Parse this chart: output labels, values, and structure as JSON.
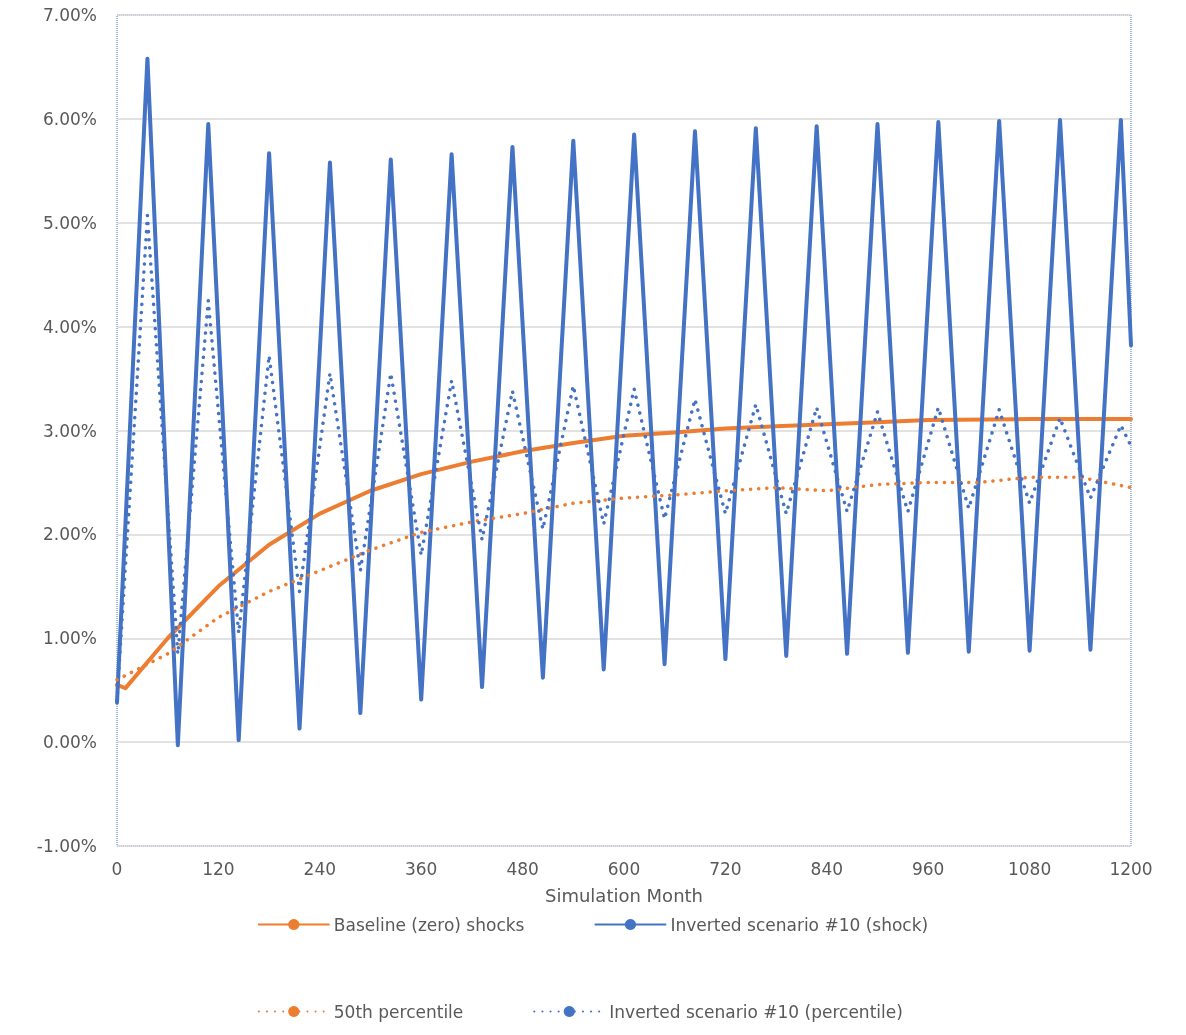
{
  "chart_data": {
    "type": "line",
    "xlabel": "Simulation Month",
    "xlim": [
      0,
      1200
    ],
    "xticks": [
      0,
      120,
      240,
      360,
      480,
      600,
      720,
      840,
      960,
      1080,
      1200
    ],
    "ylim": [
      -1,
      7
    ],
    "yticks": [
      {
        "value": -1,
        "label": "-1.00%"
      },
      {
        "value": 0,
        "label": "0.00%"
      },
      {
        "value": 1,
        "label": "1.00%"
      },
      {
        "value": 2,
        "label": "2.00%"
      },
      {
        "value": 3,
        "label": "3.00%"
      },
      {
        "value": 4,
        "label": "4.00%"
      },
      {
        "value": 5,
        "label": "5.00%"
      },
      {
        "value": 6,
        "label": "6.00%"
      },
      {
        "value": 7,
        "label": "7.00%"
      }
    ],
    "grid": "y",
    "legend": "bottom",
    "marker": "none",
    "series": [
      {
        "name": "Baseline (zero) shocks",
        "color": "#ed7d31",
        "line_style": "solid",
        "x": [
          0,
          10,
          60,
          120,
          180,
          240,
          300,
          360,
          420,
          480,
          540,
          600,
          660,
          720,
          780,
          840,
          900,
          960,
          1080,
          1200
        ],
        "values": [
          0.55,
          0.52,
          1.0,
          1.5,
          1.9,
          2.2,
          2.42,
          2.58,
          2.7,
          2.8,
          2.88,
          2.95,
          2.98,
          3.02,
          3.04,
          3.06,
          3.08,
          3.1,
          3.11,
          3.11
        ]
      },
      {
        "name": "Inverted scenario #10 (shock)",
        "color": "#4472c4",
        "line_style": "solid",
        "x": [
          0,
          36,
          72,
          108,
          144,
          180,
          216,
          252,
          288,
          324,
          360,
          396,
          432,
          468,
          504,
          540,
          576,
          612,
          648,
          684,
          720,
          756,
          792,
          828,
          864,
          900,
          936,
          972,
          1008,
          1044,
          1080,
          1116,
          1152,
          1188,
          1200
        ],
        "values": [
          0.38,
          6.58,
          -0.03,
          5.95,
          0.02,
          5.67,
          0.13,
          5.58,
          0.28,
          5.61,
          0.41,
          5.66,
          0.53,
          5.73,
          0.62,
          5.79,
          0.7,
          5.85,
          0.75,
          5.88,
          0.8,
          5.91,
          0.83,
          5.93,
          0.85,
          5.95,
          0.86,
          5.97,
          0.87,
          5.98,
          0.88,
          5.99,
          0.89,
          5.99,
          3.82
        ]
      },
      {
        "name": "50th percentile",
        "color": "#ed7d31",
        "line_style": "dotted",
        "x": [
          0,
          60,
          120,
          180,
          240,
          300,
          360,
          420,
          480,
          540,
          600,
          660,
          720,
          780,
          840,
          900,
          960,
          1020,
          1080,
          1140,
          1200
        ],
        "values": [
          0.6,
          0.85,
          1.2,
          1.45,
          1.65,
          1.85,
          2.02,
          2.12,
          2.2,
          2.3,
          2.35,
          2.38,
          2.42,
          2.45,
          2.42,
          2.48,
          2.5,
          2.5,
          2.55,
          2.55,
          2.45
        ]
      },
      {
        "name": "Inverted scenario #10 (percentile)",
        "color": "#4472c4",
        "line_style": "dotted",
        "x": [
          0,
          36,
          72,
          108,
          144,
          180,
          216,
          252,
          288,
          324,
          360,
          396,
          432,
          468,
          504,
          540,
          576,
          612,
          648,
          684,
          720,
          756,
          792,
          828,
          864,
          900,
          936,
          972,
          1008,
          1044,
          1080,
          1116,
          1152,
          1188,
          1200
        ],
        "values": [
          0.4,
          5.07,
          0.85,
          4.25,
          1.05,
          3.72,
          1.45,
          3.55,
          1.65,
          3.55,
          1.8,
          3.48,
          1.95,
          3.38,
          2.05,
          3.43,
          2.1,
          3.4,
          2.15,
          3.3,
          2.2,
          3.25,
          2.2,
          3.22,
          2.22,
          3.18,
          2.22,
          3.22,
          2.25,
          3.2,
          2.3,
          3.12,
          2.35,
          3.05,
          2.85
        ]
      }
    ]
  }
}
